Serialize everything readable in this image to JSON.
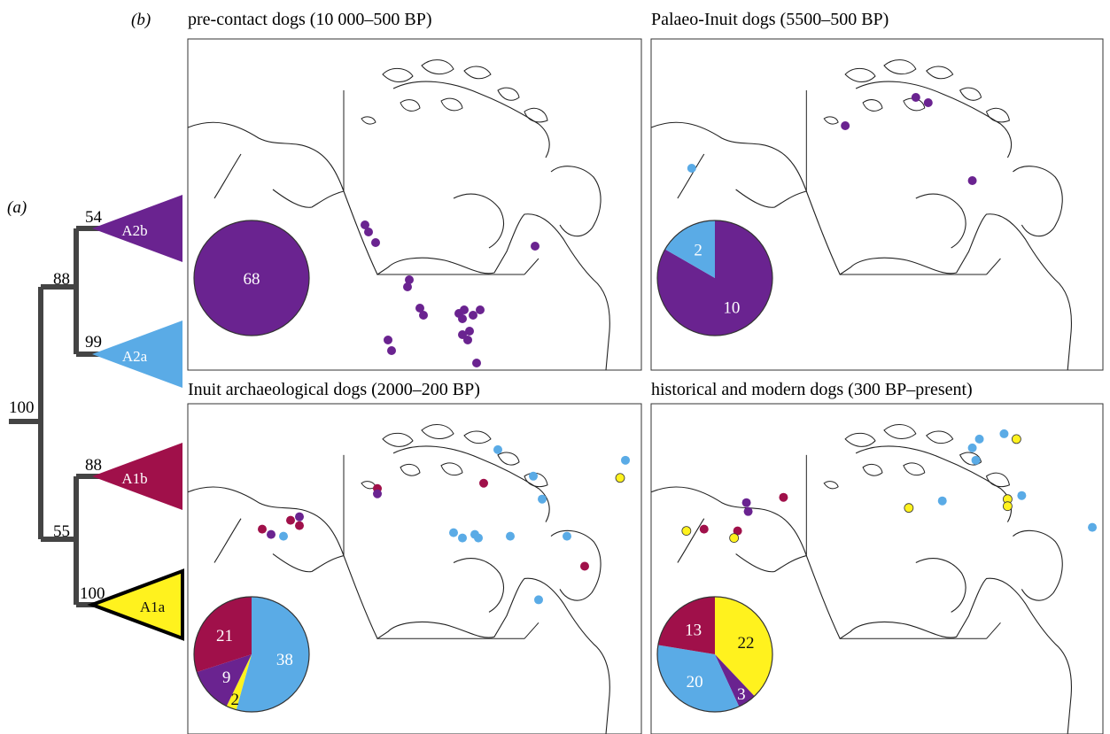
{
  "labels": {
    "panel_a": "(a)",
    "panel_b": "(b)"
  },
  "colors": {
    "A2b": "#6a2390",
    "A2a": "#5aabe6",
    "A1b": "#a0104a",
    "A1a": "#fff21e",
    "branch": "#444444"
  },
  "tree": {
    "root_support": "100",
    "clades": [
      {
        "name": "A2b",
        "support": "54"
      },
      {
        "name": "A2a",
        "support": "99"
      },
      {
        "name": "A1b",
        "support": "88"
      },
      {
        "name": "A1a",
        "support": "100"
      }
    ],
    "internal": [
      {
        "support": "88"
      },
      {
        "support": "55"
      }
    ]
  },
  "panels": [
    {
      "title": "pre-contact dogs (10 000–500 BP)",
      "pie": [
        {
          "clade": "A2b",
          "count": "68"
        }
      ]
    },
    {
      "title": "Palaeo-Inuit dogs (5500–500 BP)",
      "pie": [
        {
          "clade": "A2b",
          "count": "10"
        },
        {
          "clade": "A2a",
          "count": "2"
        }
      ]
    },
    {
      "title": "Inuit archaeological dogs (2000–200 BP)",
      "pie": [
        {
          "clade": "A2a",
          "count": "38"
        },
        {
          "clade": "A1a",
          "count": "2"
        },
        {
          "clade": "A2b",
          "count": "9"
        },
        {
          "clade": "A1b",
          "count": "21"
        }
      ]
    },
    {
      "title": "historical and modern dogs (300 BP–present)",
      "pie": [
        {
          "clade": "A1a",
          "count": "22"
        },
        {
          "clade": "A2b",
          "count": "3"
        },
        {
          "clade": "A2a",
          "count": "20"
        },
        {
          "clade": "A1b",
          "count": "13"
        }
      ]
    }
  ]
}
